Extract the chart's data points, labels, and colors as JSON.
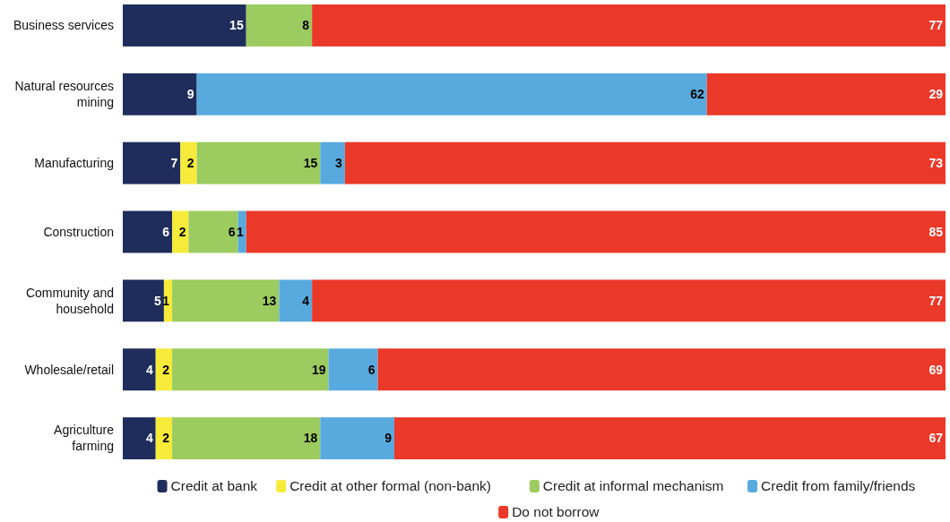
{
  "chart_data": {
    "type": "bar",
    "orientation": "horizontal",
    "stacked": true,
    "data_labels": true,
    "legend": "bottom",
    "tick_labels": "y",
    "xlim": [
      0,
      100
    ],
    "categories": [
      "Business services",
      "Natural resources mining",
      "Manufacturing",
      "Construction",
      "Community and household",
      "Wholesale/retail",
      "Agriculture farming"
    ],
    "series": [
      {
        "name": "Credit at bank",
        "color": "#1f2d5c",
        "values": [
          15,
          9,
          7,
          6,
          5,
          4,
          4
        ]
      },
      {
        "name": "Credit at other formal (non-bank)",
        "color": "#f6ea3a",
        "values": [
          null,
          null,
          2,
          2,
          1,
          2,
          2
        ]
      },
      {
        "name": "Credit at informal mechanism",
        "color": "#9ccb5f",
        "values": [
          8,
          null,
          15,
          6,
          13,
          19,
          18
        ]
      },
      {
        "name": "Credit from family/friends",
        "color": "#58aade",
        "values": [
          null,
          62,
          3,
          1,
          4,
          6,
          9
        ]
      },
      {
        "name": "Do not borrow",
        "color": "#ea3829",
        "values": [
          77,
          29,
          73,
          85,
          77,
          69,
          67
        ]
      }
    ]
  }
}
